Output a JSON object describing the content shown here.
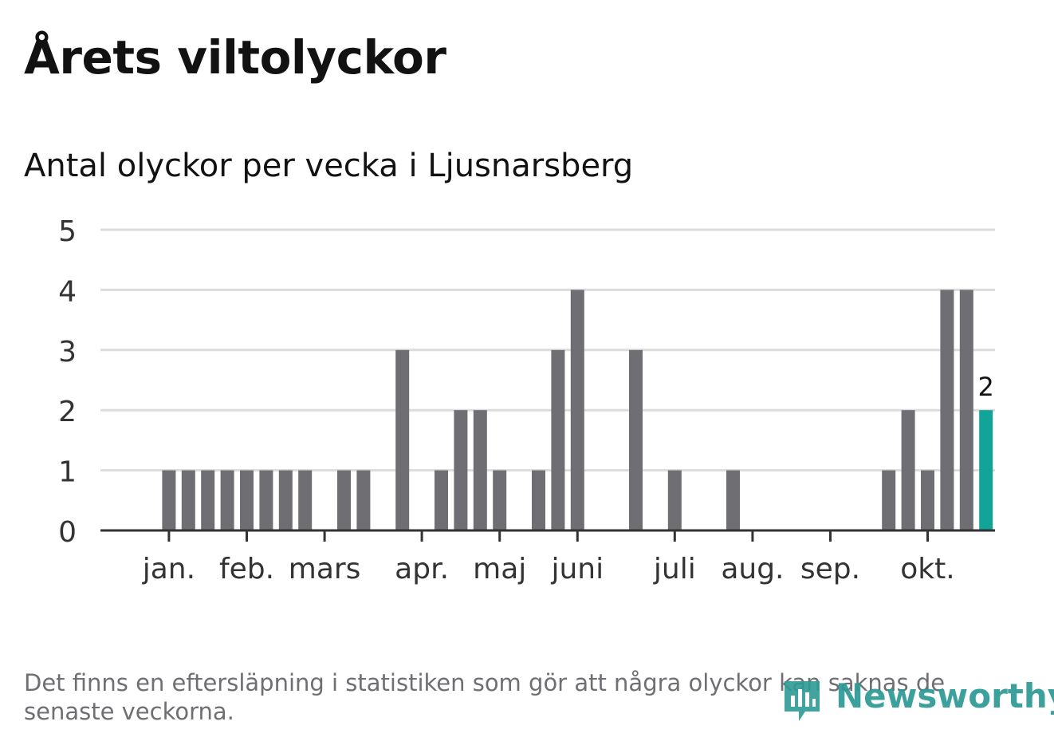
{
  "title": "Årets viltolyckor",
  "subtitle": "Antal olyckor per vecka i Ljusnarsberg",
  "footnote": "Det finns en eftersläpning i statistiken som gör att några olyckor kan saknas de senaste veckorna.",
  "brand": "Newsworthy",
  "colors": {
    "bar": "#6f6e73",
    "highlight": "#12a497",
    "grid": "#dcdcdc",
    "axis": "#333333"
  },
  "chart_data": {
    "type": "bar",
    "title": "Antal olyckor per vecka i Ljusnarsberg",
    "xlabel": "",
    "ylabel": "",
    "ylim": [
      0,
      5
    ],
    "yticks": [
      0,
      1,
      2,
      3,
      4,
      5
    ],
    "grid": true,
    "week_numbers": [
      1,
      2,
      3,
      4,
      5,
      6,
      7,
      8,
      9,
      10,
      11,
      12,
      13,
      14,
      15,
      16,
      17,
      18,
      19,
      20,
      21,
      22,
      23,
      24,
      25,
      26,
      27,
      28,
      29,
      30,
      31,
      32,
      33,
      34,
      35,
      36,
      37,
      38,
      39,
      40,
      41,
      42,
      43,
      44,
      45
    ],
    "values": [
      0,
      1,
      1,
      1,
      1,
      1,
      1,
      1,
      1,
      0,
      1,
      1,
      0,
      3,
      0,
      1,
      2,
      2,
      1,
      0,
      1,
      3,
      4,
      0,
      0,
      3,
      0,
      1,
      0,
      0,
      1,
      0,
      0,
      0,
      0,
      0,
      0,
      0,
      1,
      2,
      1,
      4,
      4,
      2,
      0
    ],
    "highlight_index": 43,
    "highlight_label": "2",
    "month_labels": [
      {
        "label": "jan.",
        "position": 1.5
      },
      {
        "label": "feb.",
        "position": 5.5
      },
      {
        "label": "mars",
        "position": 9.5
      },
      {
        "label": "apr.",
        "position": 14.5
      },
      {
        "label": "maj",
        "position": 18.5
      },
      {
        "label": "juni",
        "position": 22.5
      },
      {
        "label": "juli",
        "position": 27.5
      },
      {
        "label": "aug.",
        "position": 31.5
      },
      {
        "label": "sep.",
        "position": 35.5
      },
      {
        "label": "okt.",
        "position": 40.5
      }
    ]
  }
}
